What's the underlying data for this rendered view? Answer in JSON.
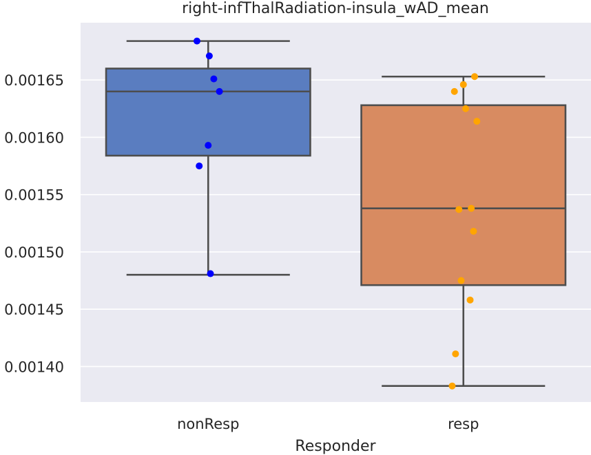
{
  "chart_data": {
    "type": "box",
    "title": "right-infThalRadiation-insula_wAD_mean",
    "xlabel": "Responder",
    "ylabel": "",
    "categories": [
      "nonResp",
      "resp"
    ],
    "ylim": [
      0.001369,
      0.0017
    ],
    "yticks": [
      "0.00140",
      "0.00145",
      "0.00150",
      "0.00155",
      "0.00160",
      "0.00165"
    ],
    "grid": true,
    "background": "#eaeaf2",
    "grid_color": "#ffffff",
    "line_color": "#4d4d4d",
    "series": [
      {
        "category": "nonResp",
        "box_color": "#5a7dc0",
        "point_color": "#0000ff",
        "whisker_low": 0.00148,
        "q1": 0.001584,
        "median": 0.00164,
        "q3": 0.00166,
        "whisker_high": 0.001684,
        "points": [
          0.001684,
          0.001671,
          0.001651,
          0.00164,
          0.001593,
          0.001575,
          0.001481
        ]
      },
      {
        "category": "resp",
        "box_color": "#d88b61",
        "point_color": "#ffa500",
        "whisker_low": 0.001383,
        "q1": 0.001471,
        "median": 0.001538,
        "q3": 0.001628,
        "whisker_high": 0.001653,
        "points": [
          0.001653,
          0.001646,
          0.00164,
          0.001625,
          0.001614,
          0.001538,
          0.001537,
          0.001518,
          0.001475,
          0.001458,
          0.001411,
          0.001383
        ]
      }
    ]
  }
}
